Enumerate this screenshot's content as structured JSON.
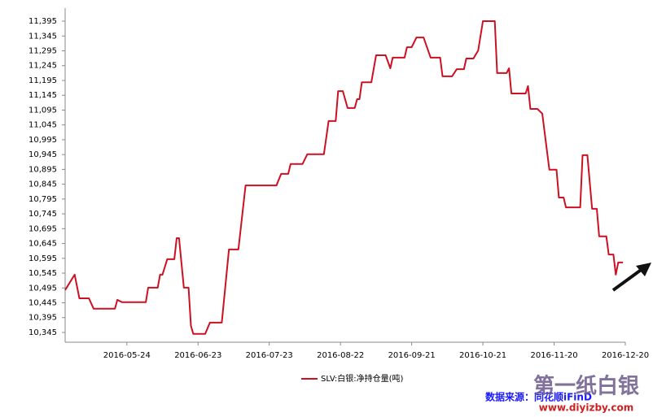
{
  "chart_data": {
    "type": "line",
    "legend_label": "SLV:白银:净持仓量(吨)",
    "source": "数据来源：同花顺iFinD",
    "watermark": "第一纸白银",
    "watermark_url": "www.diyizby.com",
    "color": "#cc1122",
    "x": [
      "2016-04-28",
      "2016-05-02",
      "2016-05-04",
      "2016-05-08",
      "2016-05-10",
      "2016-05-19",
      "2016-05-20",
      "2016-05-22",
      "2016-05-23",
      "2016-06-01",
      "2016-06-02",
      "2016-06-06",
      "2016-06-07",
      "2016-06-08",
      "2016-06-10",
      "2016-06-13",
      "2016-06-14",
      "2016-06-15",
      "2016-06-17",
      "2016-06-19",
      "2016-06-20",
      "2016-06-21",
      "2016-06-22",
      "2016-06-26",
      "2016-06-28",
      "2016-07-03",
      "2016-07-06",
      "2016-07-10",
      "2016-07-13",
      "2016-07-26",
      "2016-07-28",
      "2016-07-31",
      "2016-08-01",
      "2016-08-06",
      "2016-08-08",
      "2016-08-15",
      "2016-08-17",
      "2016-08-20",
      "2016-08-21",
      "2016-08-23",
      "2016-08-25",
      "2016-08-28",
      "2016-08-29",
      "2016-08-30",
      "2016-08-31",
      "2016-09-04",
      "2016-09-06",
      "2016-09-10",
      "2016-09-12",
      "2016-09-13",
      "2016-09-18",
      "2016-09-19",
      "2016-09-21",
      "2016-09-23",
      "2016-09-26",
      "2016-09-29",
      "2016-10-03",
      "2016-10-04",
      "2016-10-08",
      "2016-10-10",
      "2016-10-13",
      "2016-10-14",
      "2016-10-17",
      "2016-10-19",
      "2016-10-21",
      "2016-10-26",
      "2016-10-27",
      "2016-10-31",
      "2016-11-01",
      "2016-11-02",
      "2016-11-08",
      "2016-11-09",
      "2016-11-10",
      "2016-11-13",
      "2016-11-15",
      "2016-11-18",
      "2016-11-21",
      "2016-11-22",
      "2016-11-24",
      "2016-11-25",
      "2016-12-01",
      "2016-12-02",
      "2016-12-04",
      "2016-12-06",
      "2016-12-08",
      "2016-12-09",
      "2016-12-12",
      "2016-12-13",
      "2016-12-15",
      "2016-12-16",
      "2016-12-17",
      "2016-12-19"
    ],
    "values": [
      10488,
      10540,
      10460,
      10460,
      10425,
      10425,
      10455,
      10447,
      10447,
      10447,
      10496,
      10496,
      10540,
      10540,
      10592,
      10592,
      10663,
      10663,
      10496,
      10496,
      10367,
      10340,
      10340,
      10340,
      10378,
      10378,
      10625,
      10625,
      10841,
      10841,
      10880,
      10880,
      10913,
      10913,
      10946,
      10946,
      11058,
      11058,
      11159,
      11159,
      11102,
      11102,
      11132,
      11132,
      11189,
      11189,
      11280,
      11280,
      11236,
      11272,
      11272,
      11307,
      11307,
      11340,
      11340,
      11272,
      11272,
      11209,
      11209,
      11233,
      11233,
      11269,
      11269,
      11296,
      11395,
      11395,
      11220,
      11220,
      11236,
      11151,
      11151,
      11176,
      11099,
      11099,
      11083,
      10894,
      10894,
      10800,
      10800,
      10767,
      10767,
      10943,
      10943,
      10762,
      10762,
      10669,
      10669,
      10608,
      10608,
      10540,
      10581,
      10581
    ],
    "xlim": [
      "2016-04-28",
      "2016-12-20"
    ],
    "xticks": [
      "2016-05-24",
      "2016-06-23",
      "2016-07-23",
      "2016-08-22",
      "2016-09-21",
      "2016-10-21",
      "2016-11-20",
      "2016-12-20"
    ],
    "ylim": [
      10312,
      11439
    ],
    "yticks": [
      {
        "value": 10345,
        "label": "10,345"
      },
      {
        "value": 10395,
        "label": "10,395"
      },
      {
        "value": 10445,
        "label": "10,445"
      },
      {
        "value": 10495,
        "label": "10,495"
      },
      {
        "value": 10545,
        "label": "10,545"
      },
      {
        "value": 10595,
        "label": "10,595"
      },
      {
        "value": 10645,
        "label": "10,645"
      },
      {
        "value": 10695,
        "label": "10,695"
      },
      {
        "value": 10745,
        "label": "10,745"
      },
      {
        "value": 10795,
        "label": "10,795"
      },
      {
        "value": 10845,
        "label": "10,845"
      },
      {
        "value": 10895,
        "label": "10,895"
      },
      {
        "value": 10945,
        "label": "10,945"
      },
      {
        "value": 10995,
        "label": "10,995"
      },
      {
        "value": 11045,
        "label": "11,045"
      },
      {
        "value": 11095,
        "label": "11,095"
      },
      {
        "value": 11145,
        "label": "11,145"
      },
      {
        "value": 11195,
        "label": "11,195"
      },
      {
        "value": 11245,
        "label": "11,245"
      },
      {
        "value": 11295,
        "label": "11,295"
      },
      {
        "value": 11345,
        "label": "11,345"
      },
      {
        "value": 11395,
        "label": "11,395"
      }
    ],
    "grid": false
  }
}
